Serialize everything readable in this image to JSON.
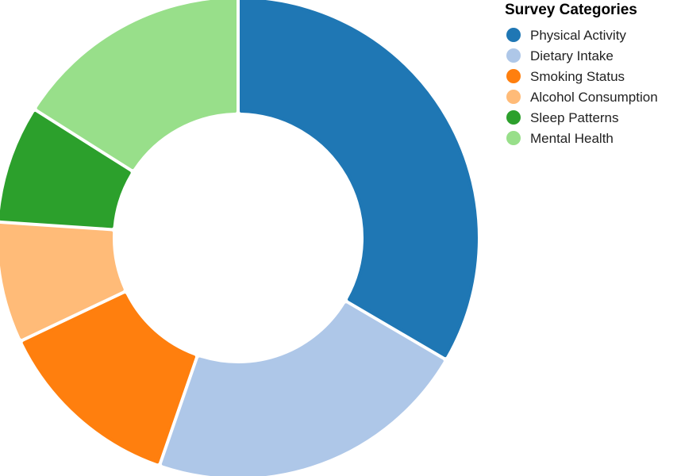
{
  "chart_data": {
    "type": "pie",
    "donut": true,
    "legend_title": "Survey Categories",
    "legend_position": "top-right",
    "categories": [
      "Physical Activity",
      "Dietary Intake",
      "Smoking Status",
      "Alcohol Consumption",
      "Sleep Patterns",
      "Mental Health"
    ],
    "values": [
      33.8,
      22.1,
      12.8,
      8.2,
      8.0,
      16.2
    ],
    "colors": [
      "#1f77b4",
      "#aec7e8",
      "#ff7f0e",
      "#ffbb78",
      "#2ca02c",
      "#98df8a"
    ]
  }
}
